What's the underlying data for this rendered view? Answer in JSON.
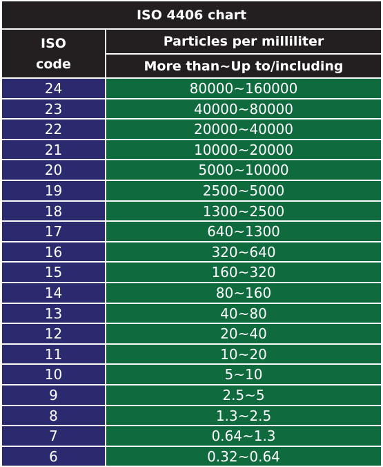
{
  "title": "ISO 4406 chart",
  "headers": {
    "iso_line1": "ISO",
    "iso_line2": "code",
    "particles": "Particles per milliliter",
    "range": "More than~Up to/including"
  },
  "rows": [
    {
      "code": "24",
      "range": "80000~160000"
    },
    {
      "code": "23",
      "range": "40000~80000"
    },
    {
      "code": "22",
      "range": "20000~40000"
    },
    {
      "code": "21",
      "range": "10000~20000"
    },
    {
      "code": "20",
      "range": "5000~10000"
    },
    {
      "code": "19",
      "range": "2500~5000"
    },
    {
      "code": "18",
      "range": "1300~2500"
    },
    {
      "code": "17",
      "range": "640~1300"
    },
    {
      "code": "16",
      "range": "320~640"
    },
    {
      "code": "15",
      "range": "160~320"
    },
    {
      "code": "14",
      "range": "80~160"
    },
    {
      "code": "13",
      "range": "40~80"
    },
    {
      "code": "12",
      "range": "20~40"
    },
    {
      "code": "11",
      "range": "10~20"
    },
    {
      "code": "10",
      "range": "5~10"
    },
    {
      "code": "9",
      "range": "2.5~5"
    },
    {
      "code": "8",
      "range": "1.3~2.5"
    },
    {
      "code": "7",
      "range": "0.64~1.3"
    },
    {
      "code": "6",
      "range": "0.32~0.64"
    }
  ],
  "colors": {
    "header_bg": "#231f20",
    "code_bg": "#2b2a6e",
    "range_bg": "#0f6a3d",
    "text": "#ffffff"
  }
}
